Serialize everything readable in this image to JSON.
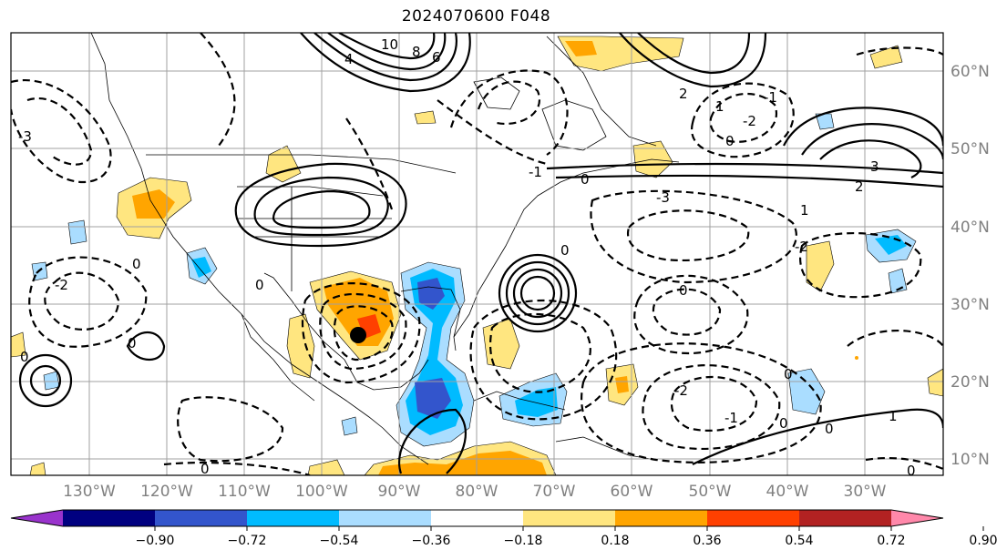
{
  "title": "2024070600 F048",
  "lon_labels": [
    "130°W",
    "120°W",
    "110°W",
    "100°W",
    "90°W",
    "80°W",
    "70°W",
    "60°W",
    "50°W",
    "40°W",
    "30°W"
  ],
  "lat_labels": [
    "60°N",
    "50°N",
    "40°N",
    "30°N",
    "20°N",
    "10°N"
  ],
  "colorbar": {
    "ticks": [
      "−0.90",
      "−0.72",
      "−0.54",
      "−0.36",
      "−0.18",
      "0.18",
      "0.36",
      "0.54",
      "0.72",
      "0.90"
    ],
    "colors": [
      "#9933cc",
      "#000080",
      "#3355cc",
      "#00bbff",
      "#aaddff",
      "#ffffff",
      "#ffe680",
      "#ffa500",
      "#ff4000",
      "#b22222",
      "#ff88aa"
    ]
  },
  "contour_labels": {
    "c_10": "10",
    "c_8": "8",
    "c_6": "6",
    "c_4": "4",
    "c_3": "3",
    "c_2": "2",
    "c_1": "1",
    "c_0": "0",
    "c_m1": "-1",
    "c_m2": "-2",
    "c_m3": "-3"
  },
  "colors": {
    "contour": "#000000",
    "grid": "#a0a0a0",
    "label": "#808080"
  }
}
